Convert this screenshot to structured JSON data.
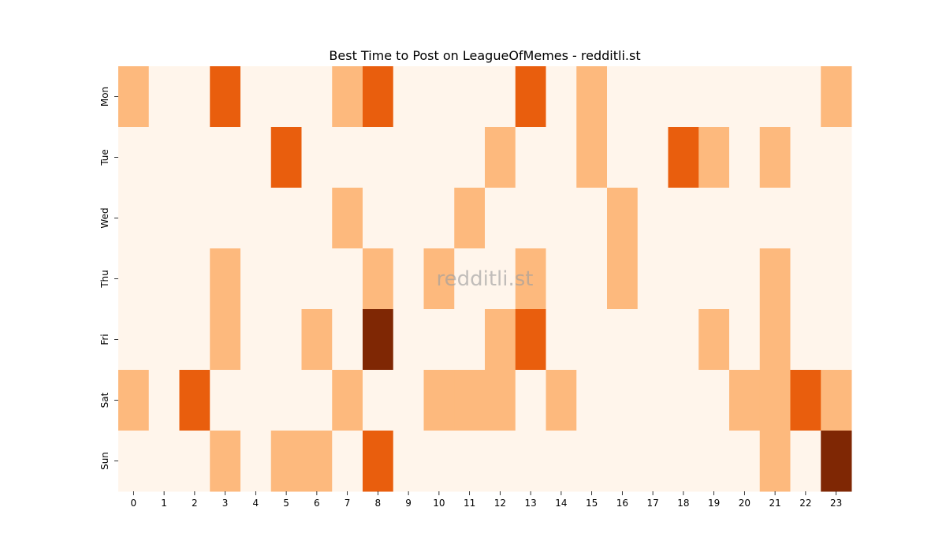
{
  "chart_data": {
    "type": "heatmap",
    "title": "Best Time to Post on LeagueOfMemes - redditli.st",
    "xlabel": "",
    "ylabel": "",
    "x_categories": [
      "0",
      "1",
      "2",
      "3",
      "4",
      "5",
      "6",
      "7",
      "8",
      "9",
      "10",
      "11",
      "12",
      "13",
      "14",
      "15",
      "16",
      "17",
      "18",
      "19",
      "20",
      "21",
      "22",
      "23"
    ],
    "y_categories": [
      "Mon",
      "Tue",
      "Wed",
      "Thu",
      "Fri",
      "Sat",
      "Sun"
    ],
    "values": [
      [
        1,
        0,
        0,
        2,
        0,
        0,
        0,
        1,
        2,
        0,
        0,
        0,
        0,
        2,
        0,
        1,
        0,
        0,
        0,
        0,
        0,
        0,
        0,
        1
      ],
      [
        0,
        0,
        0,
        0,
        0,
        2,
        0,
        0,
        0,
        0,
        0,
        0,
        1,
        0,
        0,
        1,
        0,
        0,
        2,
        1,
        0,
        1,
        0,
        0
      ],
      [
        0,
        0,
        0,
        0,
        0,
        0,
        0,
        1,
        0,
        0,
        0,
        1,
        0,
        0,
        0,
        0,
        1,
        0,
        0,
        0,
        0,
        0,
        0,
        0
      ],
      [
        0,
        0,
        0,
        1,
        0,
        0,
        0,
        0,
        1,
        0,
        1,
        0,
        0,
        1,
        0,
        0,
        1,
        0,
        0,
        0,
        0,
        1,
        0,
        0
      ],
      [
        0,
        0,
        0,
        1,
        0,
        0,
        1,
        0,
        3,
        0,
        0,
        0,
        1,
        2,
        0,
        0,
        0,
        0,
        0,
        1,
        0,
        1,
        0,
        0
      ],
      [
        1,
        0,
        2,
        0,
        0,
        0,
        0,
        1,
        0,
        0,
        1,
        1,
        1,
        0,
        1,
        0,
        0,
        0,
        0,
        0,
        1,
        1,
        2,
        1
      ],
      [
        0,
        0,
        0,
        1,
        0,
        1,
        1,
        0,
        2,
        0,
        0,
        0,
        0,
        0,
        0,
        0,
        0,
        0,
        0,
        0,
        0,
        1,
        0,
        3
      ]
    ],
    "colormap": [
      "#fff5eb",
      "#fdb97d",
      "#e95e0d",
      "#7f2704"
    ],
    "colorbar": false,
    "grid": false,
    "watermark": "redditli.st"
  }
}
